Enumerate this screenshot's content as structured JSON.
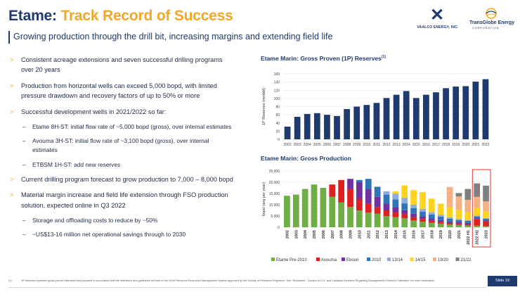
{
  "header": {
    "title_part1": "Etame:",
    "title_part2": "Track Record of Success",
    "subtitle": "Growing production through the drill bit, increasing margins and extending field life",
    "logo_vaalco": "VAALCO ENERGY, INC.",
    "logo_transglobe": "TransGlobe Energy",
    "logo_transglobe_sub": "CORPORATION"
  },
  "bullets": [
    {
      "text": "Consistent acreage extensions and seven successful drilling programs over 20 years",
      "sub": []
    },
    {
      "text": "Production from horizontal wells can exceed 5,000 bopd, with limited pressure drawdown and recovery factors of up to 50% or more",
      "sub": []
    },
    {
      "text": "Successful development wells in 2021/2022 so far:",
      "sub": [
        "Etame 8H-ST: initial flow rate of ~5,000 bopd (gross), over internal estimates",
        "Avouma 3H-ST: initial flow rate of ~3,100 bopd (gross), over internal estimates",
        "ETBSM 1H-ST: add new reserves"
      ]
    },
    {
      "text": "Current drilling program forecast to grow production to 7,000 – 8,000 bopd",
      "sub": []
    },
    {
      "text": "Material margin increase and field life extension through FSO production solution, expected online in Q3 2022",
      "sub": [
        "Storage and offloading costs to reduce by ~50%",
        "~US$13-16 million net operational savings through to 2030"
      ]
    }
  ],
  "footer": {
    "note_number": "(1)",
    "note": "1P reserves represent gross proved estimates and prepared in accordance with the definitions and guidelines set forth in the 2018 Petroleum Resources Management System approved by the Society of Petroleum Engineers. See \"Disclaimer - Caution to U.S. and Canadian Investors Regarding Management's Reserve Estimates\" for more information.",
    "slide_number": "Slide 19"
  },
  "colors": {
    "navy": "#1f3a6e",
    "orange": "#f5a623",
    "reserves_bar": "#1f3a6e",
    "pre2010": "#70ad47",
    "avouma": "#e02020",
    "ebouri": "#7030a0",
    "s2010": "#2e75b6",
    "s1314": "#8faadc",
    "s1415": "#ffd320",
    "s1920": "#f4b183",
    "s2122": "#7f7f7f"
  },
  "chart_data": [
    {
      "type": "bar",
      "title": "Etame Marin: Gross Proven (1P) Reserves",
      "title_footnote": "(1)",
      "ylabel": "1P Reserves (mmbbl)",
      "xlabel": "",
      "ylim": [
        0,
        160
      ],
      "yticks": [
        0,
        20,
        40,
        60,
        80,
        100,
        120,
        140,
        160
      ],
      "grid": true,
      "categories": [
        "2002",
        "2003",
        "2004",
        "2005",
        "2006",
        "2007",
        "2008",
        "2009",
        "2010",
        "2011",
        "2012",
        "2013",
        "2014",
        "2015",
        "2016",
        "2017",
        "2018",
        "2019",
        "2020",
        "2021",
        "2022"
      ],
      "values": [
        31,
        55,
        62,
        64,
        60,
        57,
        74,
        80,
        84,
        89,
        101,
        109,
        118,
        101,
        109,
        115,
        125,
        129,
        130,
        141,
        147
      ]
    },
    {
      "type": "bar",
      "stacked": true,
      "title": "Etame Marin: Gross Production",
      "ylabel": "bopd (avg per year)",
      "xlabel": "",
      "ylim": [
        0,
        25000
      ],
      "yticks": [
        0,
        5000,
        10000,
        15000,
        20000,
        25000
      ],
      "ytick_labels": [
        "0",
        "5,000",
        "10,000",
        "15,000",
        "20,000",
        "25,000"
      ],
      "grid": true,
      "legend_position": "bottom",
      "categories": [
        "2002",
        "2003",
        "2004",
        "2005",
        "2006",
        "2007",
        "2008",
        "2009",
        "2010",
        "2011",
        "2012",
        "2013",
        "2014",
        "2015",
        "2016",
        "2017",
        "2018",
        "2019",
        "2020",
        "2021",
        "2022 H1",
        "2022 H2",
        "2023"
      ],
      "highlight_categories": [
        "2022 H2",
        "2023"
      ],
      "series": [
        {
          "name": "Etame Pre-2010",
          "values": [
            14000,
            14500,
            17000,
            19000,
            17500,
            13500,
            11000,
            9000,
            7500,
            6500,
            6000,
            5000,
            4500,
            4000,
            3000,
            2500,
            2000,
            1600,
            1200,
            1000,
            800,
            700,
            500
          ]
        },
        {
          "name": "Avouma",
          "values": [
            0,
            0,
            0,
            0,
            0,
            5500,
            10000,
            8000,
            5000,
            4000,
            3000,
            2500,
            2200,
            1800,
            1500,
            1200,
            1000,
            800,
            700,
            600,
            600,
            2800,
            2200
          ]
        },
        {
          "name": "Ebouri",
          "values": [
            0,
            0,
            0,
            0,
            0,
            0,
            0,
            4500,
            7500,
            6500,
            4500,
            3000,
            2200,
            1800,
            1500,
            1200,
            1000,
            800,
            700,
            600,
            500,
            500,
            400
          ]
        },
        {
          "name": "2010",
          "values": [
            0,
            0,
            0,
            0,
            0,
            0,
            0,
            0,
            1000,
            4500,
            4500,
            4000,
            3500,
            3000,
            2500,
            2000,
            1700,
            1500,
            1200,
            1000,
            900,
            800,
            700
          ]
        },
        {
          "name": "13/14",
          "values": [
            0,
            0,
            0,
            0,
            0,
            0,
            0,
            0,
            0,
            0,
            0,
            1500,
            2500,
            2500,
            1500,
            1200,
            1000,
            800,
            600,
            500,
            400,
            400,
            300
          ]
        },
        {
          "name": "14/15",
          "values": [
            0,
            0,
            0,
            0,
            0,
            0,
            0,
            0,
            0,
            0,
            0,
            0,
            1000,
            5500,
            6500,
            7500,
            6000,
            5000,
            4500,
            4000,
            3500,
            3300,
            3000
          ]
        },
        {
          "name": "19/20",
          "values": [
            0,
            0,
            0,
            0,
            0,
            0,
            0,
            0,
            0,
            0,
            0,
            0,
            0,
            0,
            0,
            0,
            0,
            0,
            9000,
            6000,
            5500,
            5000,
            4400
          ]
        },
        {
          "name": "21/22",
          "values": [
            0,
            0,
            0,
            0,
            0,
            0,
            0,
            0,
            0,
            0,
            0,
            0,
            0,
            0,
            0,
            0,
            0,
            0,
            0,
            1500,
            4800,
            6000,
            7000
          ]
        }
      ]
    }
  ]
}
